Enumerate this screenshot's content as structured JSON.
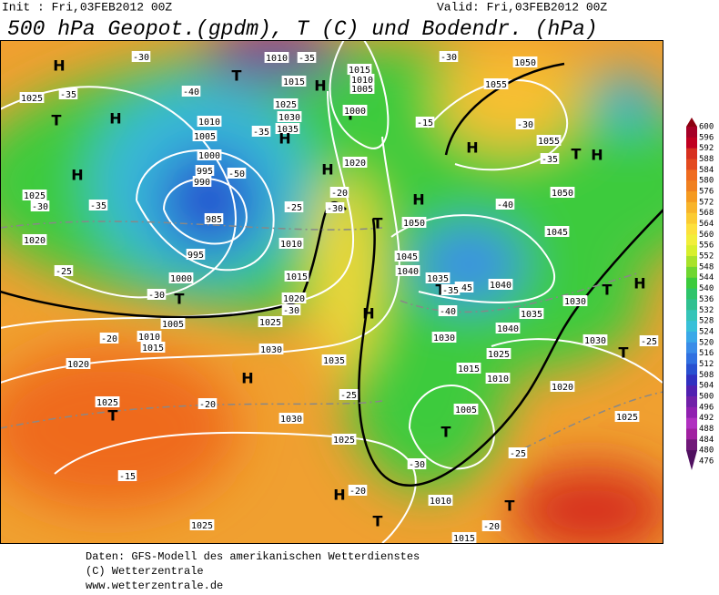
{
  "header": {
    "init": "Init : Fri,03FEB2012 00Z",
    "valid": "Valid: Fri,03FEB2012 00Z",
    "title": "500 hPa Geopot.(gpdm), T (C) und Bodendr. (hPa)"
  },
  "map": {
    "labels": [
      "1025",
      "-35",
      "H",
      "T",
      "H",
      "-40",
      "-30",
      "1010",
      "-35",
      "T",
      "1015",
      "H",
      "1015",
      "1010",
      "1005",
      "-30",
      "1050",
      "1055",
      "1010",
      "1005",
      "1000",
      "995",
      "990",
      "985",
      "1030",
      "1035",
      "1025",
      "H",
      "T",
      "1000",
      "-35",
      "H",
      "1020",
      "-50",
      "-20",
      "-30",
      "T",
      "1050",
      "1025",
      "-30",
      "-35",
      "H",
      "1020",
      "-25",
      "995",
      "1000",
      "-30",
      "T",
      "1005",
      "1010",
      "1015",
      "1020",
      "-25",
      "1025",
      "-30",
      "H",
      "1045",
      "1040",
      "1035",
      "T",
      "-45",
      "1040",
      "1050",
      "1045",
      "-40",
      "T",
      "H",
      "1055",
      "-35",
      "-30",
      "H",
      "-35",
      "-40",
      "1030",
      "T",
      "H",
      "1030",
      "T",
      "-25",
      "1040",
      "1035",
      "1030",
      "1025",
      "1015",
      "1010",
      "1020",
      "1025",
      "1005",
      "T",
      "-30",
      "1010",
      "-25",
      "T",
      "-20",
      "1015",
      "1035",
      "1030",
      "-20",
      "1010",
      "1015",
      "1020",
      "H",
      "1025",
      "T",
      "-20",
      "1030",
      "-25",
      "1025",
      "-15",
      "1025",
      "H",
      "-20",
      "T",
      "-15",
      "H"
    ]
  },
  "scale": {
    "values": [
      600,
      596,
      592,
      588,
      584,
      580,
      576,
      572,
      568,
      564,
      560,
      556,
      552,
      548,
      544,
      540,
      536,
      532,
      528,
      524,
      520,
      516,
      512,
      508,
      504,
      500,
      496,
      492,
      488,
      484,
      480,
      476
    ],
    "colors": [
      "#8b0010",
      "#a50026",
      "#c00020",
      "#d7301f",
      "#e34a1f",
      "#ef6b1f",
      "#f08020",
      "#f59a20",
      "#f8b42a",
      "#fbcb32",
      "#fde03c",
      "#f2ee3a",
      "#d8ef2c",
      "#a8e22a",
      "#6fd630",
      "#3ccb3c",
      "#2ec46a",
      "#30c090",
      "#35c4b8",
      "#38c0d8",
      "#3aa8e8",
      "#3a8ce8",
      "#3070e0",
      "#2850d0",
      "#3030c0",
      "#5020b0",
      "#7020a8",
      "#9020b0",
      "#b030c0",
      "#a020a0",
      "#701878",
      "#501060"
    ]
  },
  "footer": {
    "lines": [
      "Daten: GFS-Modell des amerikanischen Wetterdienstes",
      "(C) Wetterzentrale",
      "www.wetterzentrale.de"
    ]
  }
}
